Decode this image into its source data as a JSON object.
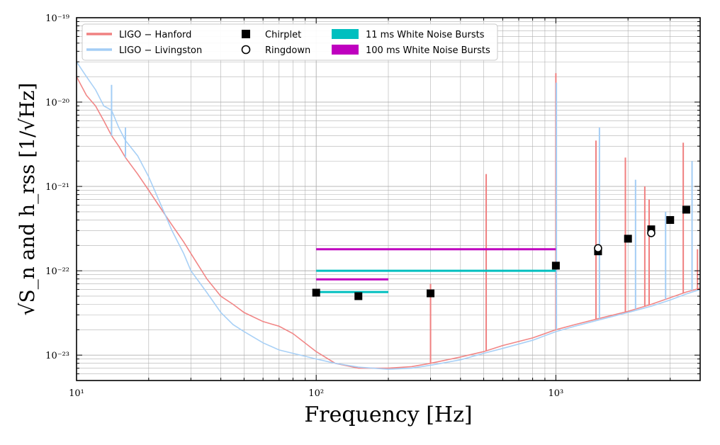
{
  "chart_data": {
    "type": "line",
    "xlabel": "Frequency [Hz]",
    "ylabel": "√S_n  and  h_rss  [1/√Hz]",
    "x_scale": "log",
    "y_scale": "log",
    "xlim": [
      10,
      4000
    ],
    "ylim": [
      5e-24,
      1e-19
    ],
    "grid": true,
    "legend_placement": "top-left",
    "x_tick_labels": [
      {
        "value": 10,
        "label": "10¹"
      },
      {
        "value": 100,
        "label": "10²"
      },
      {
        "value": 1000,
        "label": "10³"
      }
    ],
    "y_tick_labels": [
      {
        "value": 1e-19,
        "label": "10⁻¹⁹"
      },
      {
        "value": 1e-20,
        "label": "10⁻²⁰"
      },
      {
        "value": 1e-21,
        "label": "10⁻²¹"
      },
      {
        "value": 1e-22,
        "label": "10⁻²²"
      },
      {
        "value": 1e-23,
        "label": "10⁻²³"
      }
    ],
    "series": [
      {
        "name": "LIGO − Hanford",
        "kind": "line",
        "color": "#f08080",
        "x": [
          10,
          11,
          12,
          13,
          14,
          15,
          16,
          18,
          20,
          22,
          25,
          28,
          30,
          35,
          40,
          45,
          50,
          60,
          70,
          80,
          100,
          120,
          150,
          200,
          250,
          300,
          400,
          500,
          600,
          800,
          1000,
          1200,
          1500,
          2000,
          2500,
          3000,
          3500,
          4000
        ],
        "y": [
          2e-20,
          1.2e-20,
          9e-21,
          6e-21,
          4e-21,
          3e-21,
          2.2e-21,
          1.4e-21,
          9e-22,
          6e-22,
          3.5e-22,
          2.2e-22,
          1.6e-22,
          8e-23,
          5e-23,
          4e-23,
          3.2e-23,
          2.5e-23,
          2.2e-23,
          1.8e-23,
          1.1e-23,
          8e-24,
          7e-24,
          7e-24,
          7.3e-24,
          8e-24,
          9.5e-24,
          1.1e-23,
          1.3e-23,
          1.6e-23,
          2e-23,
          2.3e-23,
          2.7e-23,
          3.3e-23,
          4e-23,
          4.8e-23,
          5.6e-23,
          6.2e-23
        ]
      },
      {
        "name": "LIGO − Livingston",
        "kind": "line",
        "color": "#a3cdf5",
        "x": [
          10,
          11,
          12,
          13,
          14,
          15,
          16,
          18,
          20,
          22,
          25,
          28,
          30,
          35,
          40,
          45,
          50,
          60,
          70,
          80,
          100,
          120,
          150,
          200,
          250,
          300,
          400,
          500,
          600,
          800,
          1000,
          1200,
          1500,
          2000,
          2500,
          3000,
          3500,
          4000
        ],
        "y": [
          3e-20,
          2e-20,
          1.4e-20,
          9e-21,
          8e-21,
          5e-21,
          3.5e-21,
          2.3e-21,
          1.3e-21,
          7e-22,
          3e-22,
          1.6e-22,
          1e-22,
          5.5e-23,
          3.2e-23,
          2.3e-23,
          1.9e-23,
          1.4e-23,
          1.15e-23,
          1.05e-23,
          9e-24,
          8e-24,
          7.2e-24,
          6.8e-24,
          7e-24,
          7.6e-24,
          8.8e-24,
          1.05e-23,
          1.2e-23,
          1.5e-23,
          1.9e-23,
          2.2e-23,
          2.6e-23,
          3.2e-23,
          3.8e-23,
          4.5e-23,
          5.3e-23,
          6e-23
        ]
      },
      {
        "name": "Chirplet",
        "kind": "marker",
        "marker": "square",
        "color": "#000000",
        "x": [
          100,
          150,
          300,
          1000,
          1500,
          2000,
          2500,
          3000,
          3500
        ],
        "y": [
          5.5e-23,
          5e-23,
          5.4e-23,
          1.15e-22,
          1.7e-22,
          2.4e-22,
          3.1e-22,
          4e-22,
          5.3e-22
        ]
      },
      {
        "name": "Ringdown",
        "kind": "marker",
        "marker": "circle",
        "color": "#000000",
        "x": [
          1500,
          2500
        ],
        "y": [
          1.85e-22,
          2.8e-22
        ]
      },
      {
        "name": "11 ms White Noise Bursts",
        "kind": "segment",
        "color": "#00bfbf",
        "segments": [
          {
            "x": [
              100,
              200
            ],
            "y": 5.6e-23
          },
          {
            "x": [
              100,
              1000
            ],
            "y": 1e-22
          }
        ]
      },
      {
        "name": "100 ms White Noise Bursts",
        "kind": "segment",
        "color": "#bf00bf",
        "segments": [
          {
            "x": [
              100,
              200
            ],
            "y": 7.9e-23
          },
          {
            "x": [
              100,
              1000
            ],
            "y": 1.8e-22
          }
        ]
      }
    ],
    "spikes": [
      {
        "x": 14,
        "top": 1.6e-20,
        "color": "#a3cdf5"
      },
      {
        "x": 16,
        "top": 5e-21,
        "color": "#a3cdf5"
      },
      {
        "x": 300,
        "top": 7e-23,
        "color": "#f08080"
      },
      {
        "x": 512,
        "top": 1.4e-21,
        "color": "#f08080"
      },
      {
        "x": 1000,
        "top": 2.2e-20,
        "color": "#f08080"
      },
      {
        "x": 1005,
        "top": 1.7e-20,
        "color": "#a3cdf5"
      },
      {
        "x": 1470,
        "top": 3.5e-21,
        "color": "#f08080"
      },
      {
        "x": 1520,
        "top": 5e-21,
        "color": "#a3cdf5"
      },
      {
        "x": 1950,
        "top": 2.2e-21,
        "color": "#f08080"
      },
      {
        "x": 2150,
        "top": 1.2e-21,
        "color": "#a3cdf5"
      },
      {
        "x": 2350,
        "top": 1e-21,
        "color": "#f08080"
      },
      {
        "x": 2450,
        "top": 7e-22,
        "color": "#f08080"
      },
      {
        "x": 2870,
        "top": 5e-22,
        "color": "#a3cdf5"
      },
      {
        "x": 3400,
        "top": 3.3e-21,
        "color": "#f08080"
      },
      {
        "x": 3700,
        "top": 2e-21,
        "color": "#a3cdf5"
      },
      {
        "x": 3900,
        "top": 1.8e-22,
        "color": "#f08080"
      }
    ]
  }
}
